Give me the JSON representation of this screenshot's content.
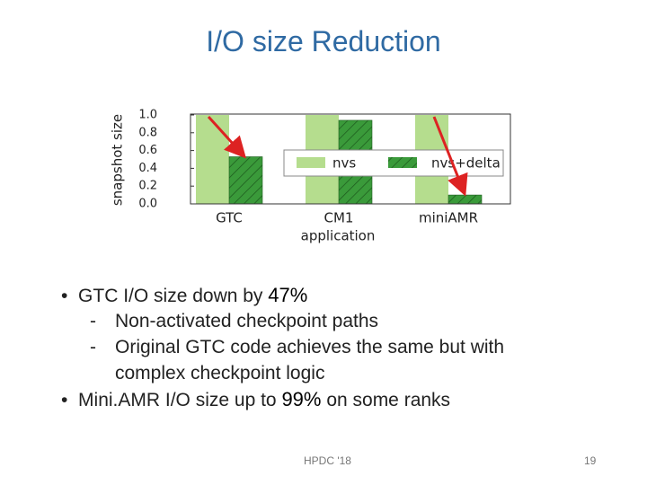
{
  "title": "I/O size Reduction",
  "chart_data": {
    "type": "bar",
    "y_label": "snapshot size",
    "x_label": "application",
    "categories": [
      "GTC",
      "CM1",
      "miniAMR"
    ],
    "series": [
      {
        "name": "nvs",
        "color": "#b5dd8e",
        "values": [
          1.0,
          1.0,
          1.0
        ]
      },
      {
        "name": "nvs+delta",
        "color": "#3a9a3a",
        "values": [
          0.53,
          0.94,
          0.1
        ]
      }
    ],
    "ylim": [
      0,
      1.0
    ],
    "yticks": [
      {
        "value": 0,
        "label": "0.0"
      },
      {
        "value": 0.2,
        "label": "0.2"
      },
      {
        "value": 0.4,
        "label": "0.4"
      },
      {
        "value": 0.6,
        "label": "0.6"
      },
      {
        "value": 0.8,
        "label": "0.8"
      },
      {
        "value": 1.0,
        "label": "1.0"
      }
    ],
    "legend": "upper right"
  },
  "bullets": [
    {
      "text": "GTC I/O size down by ",
      "highlight": "47%"
    },
    {
      "sub": [
        "Non-activated checkpoint paths",
        "Original GTC code achieves the same but with complex checkpoint logic"
      ]
    },
    {
      "text": "Mini.AMR I/O size up to ",
      "highlight": "99%",
      "after": " on some ranks"
    }
  ],
  "footer": "HPDC '18",
  "page": "19"
}
